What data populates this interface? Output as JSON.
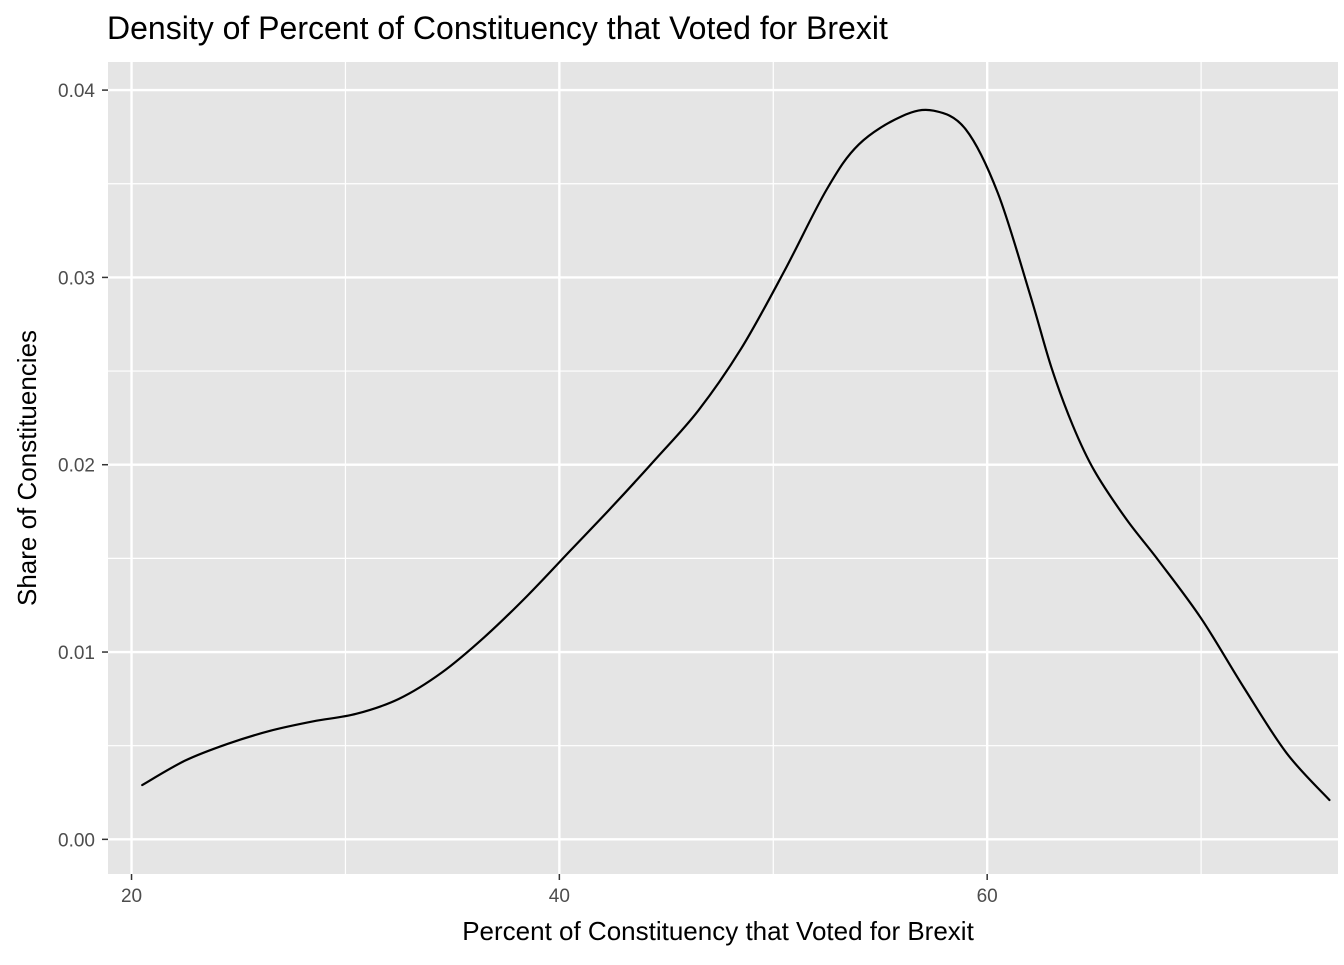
{
  "chart_data": {
    "type": "area",
    "title": "Density of Percent of Constituency that Voted for Brexit",
    "xlabel": "Percent of Constituency that Voted for Brexit",
    "ylabel": "Share of Constituencies",
    "xlim": [
      18.9,
      76.4
    ],
    "ylim": [
      -0.00185,
      0.0415
    ],
    "x_ticks": [
      20,
      40,
      60
    ],
    "x_tick_labels": [
      "20",
      "40",
      "60"
    ],
    "y_ticks": [
      0.0,
      0.01,
      0.02,
      0.03,
      0.04
    ],
    "y_tick_labels": [
      "0.00",
      "0.01",
      "0.02",
      "0.03",
      "0.04"
    ],
    "grid": true,
    "x_minor_ticks": [
      30,
      50,
      70
    ],
    "y_minor_ticks": [
      0.005,
      0.015,
      0.025,
      0.035
    ],
    "colors": {
      "panel_background": "#e5e5e5",
      "grid_line": "#ffffff",
      "line": "#000000"
    },
    "series": [
      {
        "x": [
          20.5,
          22.5,
          24.5,
          26.5,
          28.5,
          30.5,
          32.5,
          34.5,
          36.5,
          38.5,
          40.5,
          42.5,
          44.5,
          46.5,
          48.5,
          50.5,
          52.5,
          54.0,
          56.0,
          57.5,
          59.0,
          60.5,
          62.0,
          63.0,
          64.0,
          65.0,
          66.5,
          68.0,
          70.0,
          72.0,
          74.0,
          76.0
        ],
        "values": [
          0.0029,
          0.0042,
          0.0051,
          0.0058,
          0.0063,
          0.0067,
          0.0075,
          0.0089,
          0.0108,
          0.013,
          0.0154,
          0.0178,
          0.0203,
          0.0229,
          0.0262,
          0.0303,
          0.0347,
          0.0371,
          0.0386,
          0.0389,
          0.0379,
          0.0345,
          0.0291,
          0.0252,
          0.0221,
          0.0197,
          0.0171,
          0.0149,
          0.0118,
          0.0081,
          0.0046,
          0.0021
        ]
      }
    ]
  }
}
